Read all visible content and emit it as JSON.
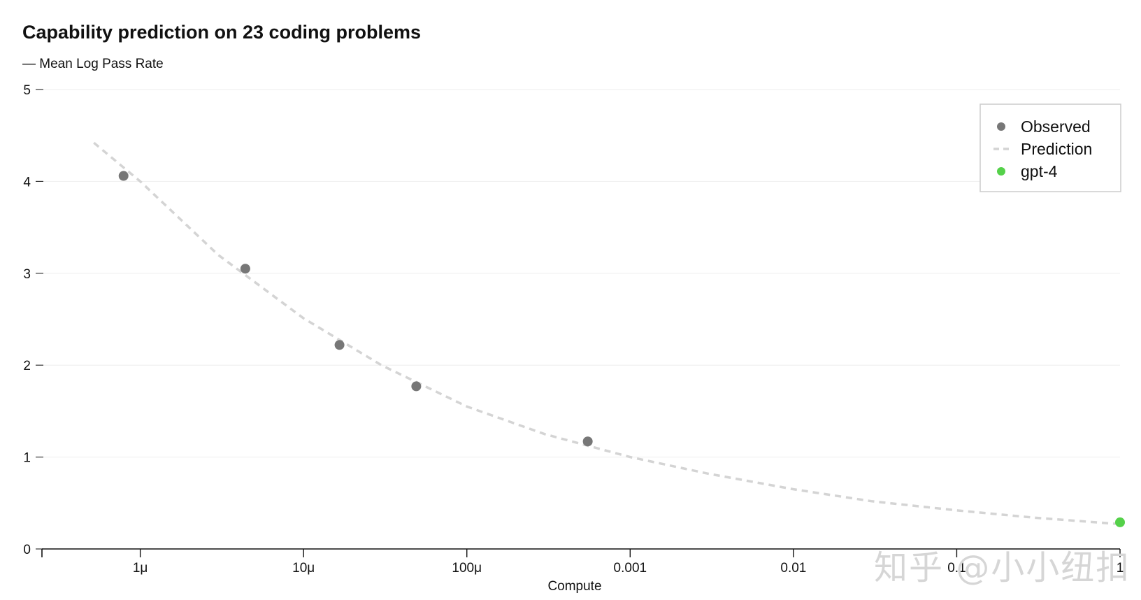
{
  "chart_data": {
    "type": "scatter",
    "title": "Capability prediction on 23 coding problems",
    "subtitle": "— Mean Log Pass Rate",
    "xlabel": "Compute",
    "ylabel": "",
    "x_scale": "log",
    "xlim": [
      2.5e-07,
      1.0
    ],
    "ylim": [
      0,
      5
    ],
    "x_ticks": [
      1e-06,
      1e-05,
      0.0001,
      0.001,
      0.01,
      0.1,
      1
    ],
    "x_tick_labels": [
      "1μ",
      "10μ",
      "100μ",
      "0.001",
      "0.01",
      "0.1",
      "1"
    ],
    "y_ticks": [
      0,
      1,
      2,
      3,
      4,
      5
    ],
    "y_tick_labels": [
      "0",
      "1",
      "2",
      "3",
      "4",
      "5"
    ],
    "grid": "horizontal",
    "legend_position": "top-right",
    "series": [
      {
        "name": "Observed",
        "kind": "points",
        "color": "#777777",
        "x": [
          7.9e-07,
          4.4e-06,
          1.66e-05,
          4.9e-05,
          0.00055
        ],
        "y": [
          4.06,
          3.05,
          2.22,
          1.77,
          1.17
        ]
      },
      {
        "name": "Prediction",
        "kind": "dashed-line",
        "color": "#d4d4d4",
        "x": [
          5.2e-07,
          1e-06,
          3e-06,
          1e-05,
          3e-05,
          0.0001,
          0.0003,
          0.001,
          0.003,
          0.01,
          0.03,
          0.1,
          0.3,
          1.0
        ],
        "y": [
          4.42,
          4.0,
          3.2,
          2.51,
          2.0,
          1.55,
          1.25,
          1.0,
          0.82,
          0.65,
          0.52,
          0.42,
          0.34,
          0.27
        ]
      },
      {
        "name": "gpt-4",
        "kind": "points",
        "color": "#55d14a",
        "x": [
          1.0
        ],
        "y": [
          0.29
        ]
      }
    ]
  },
  "watermark": "知乎 @小小纽扣"
}
